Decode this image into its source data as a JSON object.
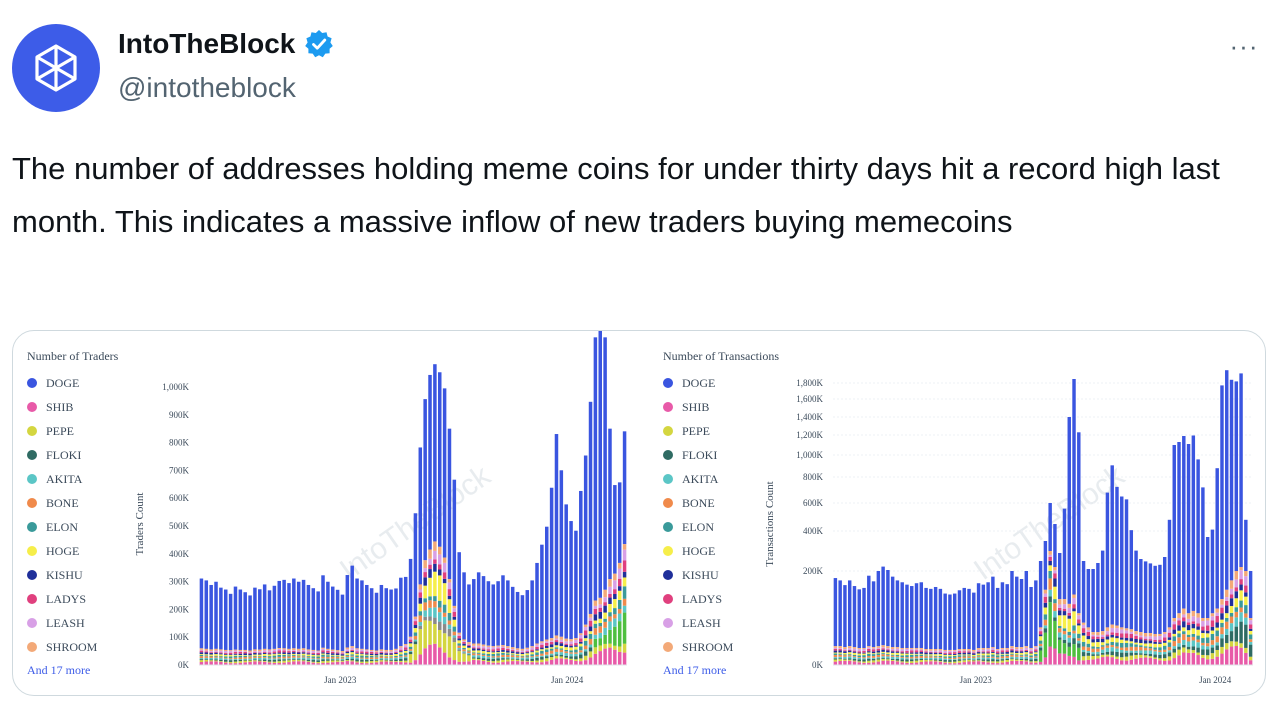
{
  "tweet": {
    "display_name": "IntoTheBlock",
    "handle": "@intotheblock",
    "verified": true,
    "more_label": "···",
    "text": "The number of addresses holding meme coins for under thirty days hit a record high last month. This indicates a massive inflow of new traders buying memecoins"
  },
  "colors": {
    "DOGE": "#3a55e0",
    "SHIB": "#e85aa8",
    "PEPE": "#d4d640",
    "FLOKI": "#2f6b63",
    "AKITA": "#5bc6c6",
    "BONE": "#f08a4b",
    "ELON": "#3a9a9a",
    "HOGE": "#f6ee4a",
    "KISHU": "#1f2f9a",
    "LADYS": "#e0407e",
    "LEASH": "#d8a0e6",
    "SHROOM": "#f3a978"
  },
  "chart_data": [
    {
      "type": "bar",
      "title": "Number of Traders",
      "ylabel": "Traders Count",
      "ylim": [
        0,
        1050000
      ],
      "yticks": [
        "0K",
        "100K",
        "200K",
        "300K",
        "400K",
        "500K",
        "600K",
        "700K",
        "800K",
        "900K",
        "1,000K"
      ],
      "xticks": [
        "Jan 2023",
        "Jan 2024"
      ],
      "legend": [
        "DOGE",
        "SHIB",
        "PEPE",
        "FLOKI",
        "AKITA",
        "BONE",
        "ELON",
        "HOGE",
        "KISHU",
        "LADYS",
        "LEASH",
        "SHROOM"
      ],
      "legend_more": "And 17 more",
      "watermark": "IntoTheBlock",
      "doge_series": [
        260000,
        255000,
        240000,
        250000,
        230000,
        225000,
        210000,
        235000,
        225000,
        215000,
        205000,
        230000,
        225000,
        240000,
        220000,
        235000,
        250000,
        255000,
        245000,
        260000,
        250000,
        255000,
        240000,
        230000,
        220000,
        270000,
        250000,
        235000,
        225000,
        210000,
        270000,
        300000,
        260000,
        255000,
        240000,
        230000,
        215000,
        240000,
        230000,
        225000,
        225000,
        255000,
        250000,
        290000,
        385000,
        510000,
        600000,
        650000,
        660000,
        650000,
        630000,
        560000,
        470000,
        300000,
        250000,
        215000,
        240000,
        265000,
        255000,
        240000,
        230000,
        240000,
        260000,
        245000,
        225000,
        210000,
        200000,
        215000,
        245000,
        300000,
        360000,
        420000,
        560000,
        750000,
        620000,
        500000,
        440000,
        400000,
        530000,
        630000,
        790000,
        980000,
        1010000,
        940000,
        560000,
        330000,
        300000,
        420000
      ],
      "other_total_series": [
        62000,
        60000,
        58000,
        60000,
        58000,
        56000,
        55000,
        57000,
        56000,
        56000,
        54000,
        58000,
        57000,
        60000,
        58000,
        60000,
        63000,
        62000,
        60000,
        62000,
        60000,
        62000,
        58000,
        56000,
        54000,
        64000,
        60000,
        57000,
        55000,
        52000,
        65000,
        70000,
        62000,
        60000,
        58000,
        56000,
        54000,
        58000,
        56000,
        56000,
        60000,
        70000,
        78000,
        105000,
        180000,
        300000,
        390000,
        430000,
        460000,
        440000,
        400000,
        320000,
        220000,
        120000,
        95000,
        85000,
        80000,
        80000,
        76000,
        72000,
        70000,
        72000,
        74000,
        70000,
        66000,
        62000,
        60000,
        64000,
        70000,
        80000,
        88000,
        95000,
        100000,
        110000,
        105000,
        98000,
        96000,
        100000,
        118000,
        150000,
        190000,
        240000,
        250000,
        280000,
        320000,
        340000,
        380000,
        450000
      ]
    },
    {
      "type": "bar",
      "title": "Number of Transactions",
      "ylabel": "Transactions Count",
      "yticks": [
        "0K",
        "200K",
        "400K",
        "600K",
        "800K",
        "1,000K",
        "1,200K",
        "1,400K",
        "1,600K",
        "1,800K"
      ],
      "xticks": [
        "Jan 2023",
        "Jan 2024"
      ],
      "legend": [
        "DOGE",
        "SHIB",
        "PEPE",
        "FLOKI",
        "AKITA",
        "BONE",
        "ELON",
        "HOGE",
        "KISHU",
        "LADYS",
        "LEASH",
        "SHROOM"
      ],
      "legend_more": "And 17 more",
      "watermark": "IntoTheBlock",
      "doge_series": [
        145000,
        140000,
        132000,
        140000,
        130000,
        125000,
        128000,
        150000,
        140000,
        160000,
        180000,
        165000,
        150000,
        142000,
        140000,
        135000,
        132000,
        138000,
        140000,
        130000,
        128000,
        132000,
        128000,
        120000,
        118000,
        120000,
        125000,
        130000,
        128000,
        122000,
        138000,
        135000,
        140000,
        150000,
        130000,
        140000,
        136000,
        160000,
        150000,
        145000,
        160000,
        130000,
        140000,
        170000,
        190000,
        300000,
        230000,
        150000,
        420000,
        1270000,
        1700000,
        1120000,
        160000,
        130000,
        140000,
        170000,
        230000,
        600000,
        820000,
        640000,
        570000,
        550000,
        330000,
        230000,
        190000,
        180000,
        170000,
        160000,
        165000,
        200000,
        400000,
        1000000,
        1020000,
        1070000,
        1000000,
        1080000,
        850000,
        620000,
        270000,
        300000,
        760000,
        1630000,
        1800000,
        1660000,
        1620000,
        1700000,
        280000,
        100000
      ],
      "other_total_series": [
        40000,
        40000,
        38000,
        40000,
        38000,
        36000,
        36000,
        40000,
        38000,
        40000,
        42000,
        40000,
        38000,
        38000,
        36000,
        36000,
        36000,
        36000,
        36000,
        34000,
        34000,
        34000,
        34000,
        32000,
        32000,
        32000,
        34000,
        34000,
        34000,
        32000,
        36000,
        36000,
        36000,
        38000,
        34000,
        36000,
        36000,
        40000,
        38000,
        38000,
        40000,
        36000,
        40000,
        80000,
        160000,
        300000,
        220000,
        140000,
        140000,
        130000,
        150000,
        110000,
        90000,
        80000,
        70000,
        70000,
        72000,
        80000,
        86000,
        84000,
        80000,
        78000,
        76000,
        72000,
        70000,
        68000,
        68000,
        66000,
        66000,
        70000,
        80000,
        100000,
        110000,
        120000,
        110000,
        115000,
        110000,
        100000,
        100000,
        110000,
        120000,
        140000,
        160000,
        180000,
        200000,
        220000,
        200000,
        100000
      ]
    }
  ]
}
